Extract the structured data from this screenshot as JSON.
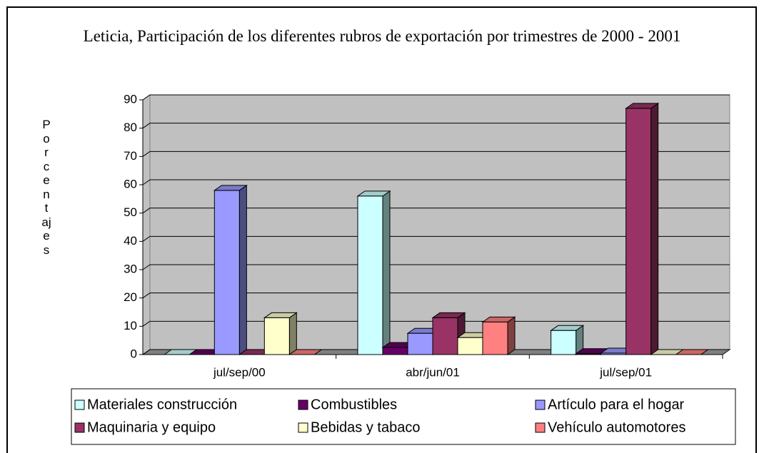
{
  "chart_data": {
    "type": "bar3d",
    "title": "Leticia, Participación de los diferentes rubros de exportación por trimestres de 2000 - 2001",
    "y_label": "Porcentajes",
    "categories": [
      "jul/sep/00",
      "abr/jun/01",
      "jul/sep/01"
    ],
    "series": [
      {
        "name": "Materiales construcción",
        "color": "#ccffff",
        "values": [
          0,
          56,
          8.5
        ]
      },
      {
        "name": "Combustibles",
        "color": "#660066",
        "values": [
          0,
          2.5,
          0.3
        ]
      },
      {
        "name": "Artículo para el hogar",
        "color": "#9999ff",
        "values": [
          58,
          7.5,
          0.5
        ]
      },
      {
        "name": "Maquinaria y equipo",
        "color": "#993366",
        "values": [
          0,
          13,
          87
        ]
      },
      {
        "name": "Bebidas y tabaco",
        "color": "#ffffcc",
        "values": [
          13,
          6,
          0
        ]
      },
      {
        "name": "Vehículo automotores",
        "color": "#ff8080",
        "values": [
          0,
          11.5,
          0
        ]
      }
    ],
    "ylim": [
      0,
      90
    ],
    "yticks": [
      0,
      10,
      20,
      30,
      40,
      50,
      60,
      70,
      80,
      90
    ],
    "grid": true
  }
}
